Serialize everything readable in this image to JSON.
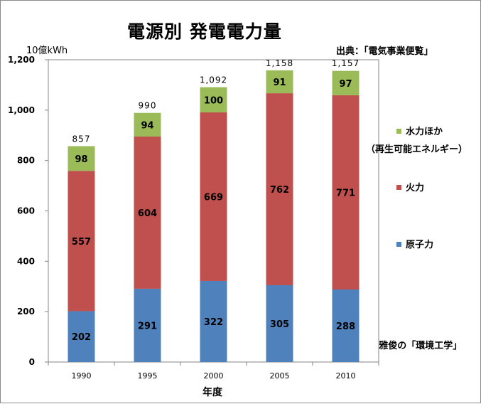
{
  "chart_data": {
    "type": "bar",
    "stacked": true,
    "title": "電源別 発電電力量",
    "ylabel": "10億kWh",
    "xlabel": "年度",
    "source": "出典：「電気事業便覧」",
    "credit": "by 矢崎雅俊の「環境工学」",
    "categories": [
      "1990",
      "1995",
      "2000",
      "2005",
      "2010"
    ],
    "ylim": [
      0,
      1200
    ],
    "yticks": [
      "0",
      "200",
      "400",
      "600",
      "800",
      "1,000",
      "1,200"
    ],
    "ytick_values": [
      0,
      200,
      400,
      600,
      800,
      1000,
      1200
    ],
    "grid": false,
    "legend_position": "right",
    "series": [
      {
        "name": "原子力",
        "values": [
          202,
          291,
          322,
          305,
          288
        ],
        "color": "#4f81bd"
      },
      {
        "name": "火力",
        "values": [
          557,
          604,
          669,
          762,
          771
        ],
        "color": "#c0504d"
      },
      {
        "name": "水力ほか",
        "name_line2": "（再生可能エネルギー）",
        "values": [
          98,
          94,
          100,
          91,
          97
        ],
        "color": "#9bbb59"
      }
    ],
    "totals": [
      "857",
      "990",
      "1,092",
      "1,158",
      "1,157"
    ],
    "total_values": [
      857,
      990,
      1092,
      1158,
      1157
    ]
  }
}
